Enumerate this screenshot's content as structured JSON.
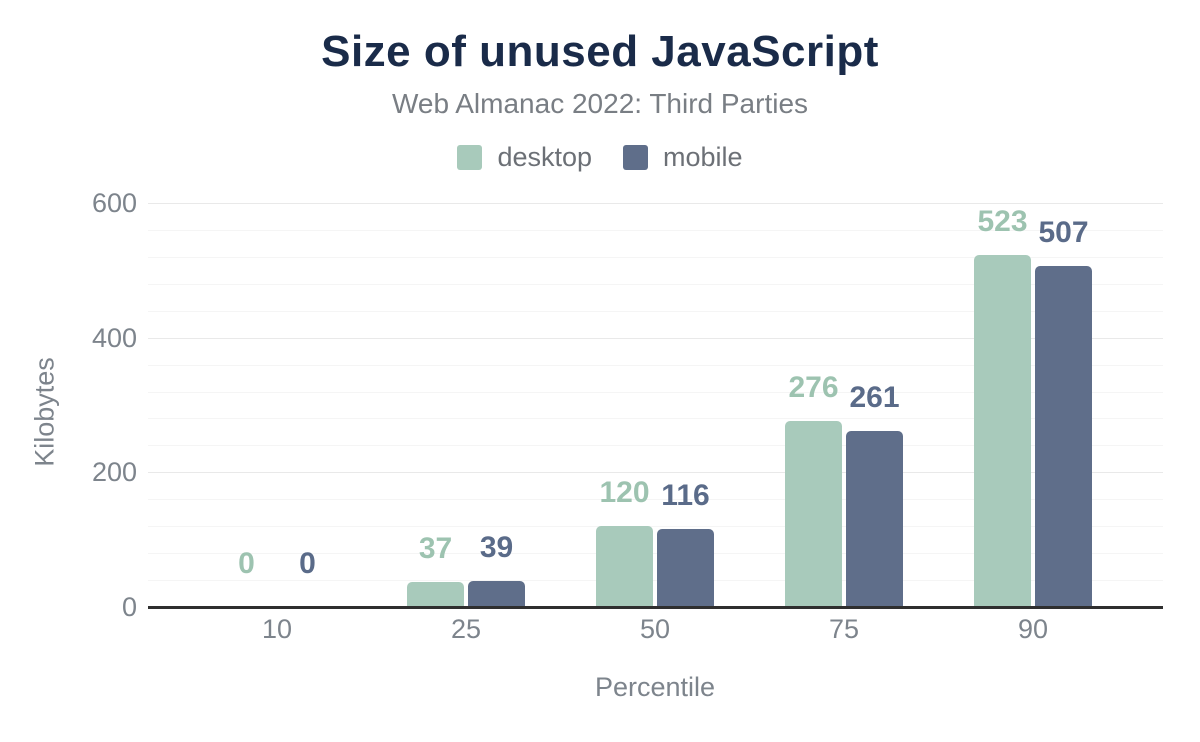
{
  "chart_data": {
    "type": "bar",
    "title": "Size of unused JavaScript",
    "subtitle": "Web Almanac 2022: Third Parties",
    "xlabel": "Percentile",
    "ylabel": "Kilobytes",
    "categories": [
      "10",
      "25",
      "50",
      "75",
      "90"
    ],
    "series": [
      {
        "name": "desktop",
        "color": "#a8cabb",
        "label_color": "#9dc3b0",
        "values": [
          0,
          37,
          120,
          276,
          523
        ]
      },
      {
        "name": "mobile",
        "color": "#5f6e8a",
        "label_color": "#5a6b89",
        "values": [
          0,
          39,
          116,
          261,
          507
        ]
      }
    ],
    "ylim": [
      0,
      600
    ],
    "yticks": [
      0,
      200,
      400,
      600
    ],
    "minor_grid_step": 40,
    "grid": true,
    "legend_position": "top",
    "data_labels_shown": true
  },
  "colors": {
    "title": "#1a2b49",
    "subtitle": "#797e84",
    "legend_text": "#6c7076",
    "axis_text": "#7d848c",
    "axis_line": "#2f2f2f",
    "grid_major": "#e9e9e9",
    "grid_minor": "#f5f5f5",
    "background": "#ffffff"
  }
}
